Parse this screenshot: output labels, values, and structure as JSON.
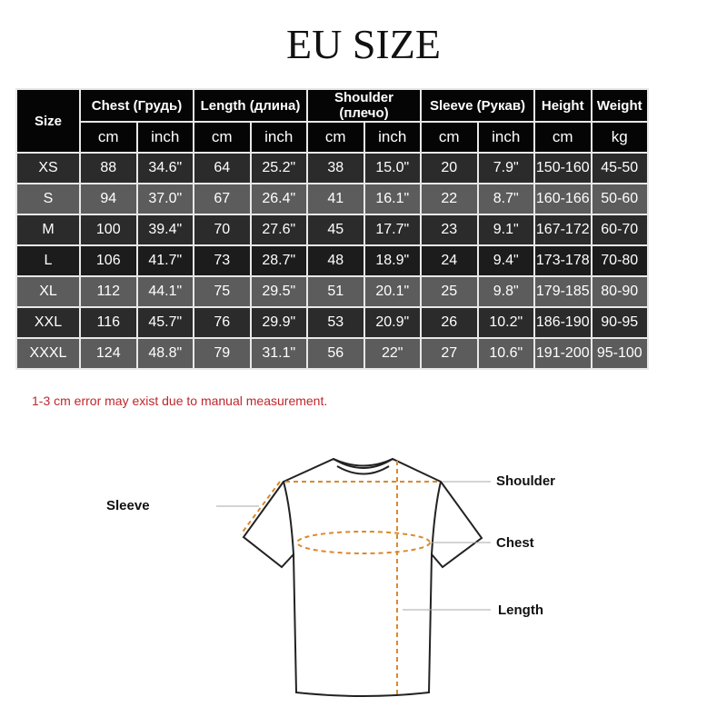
{
  "title": "EU SIZE",
  "table": {
    "size_header": "Size",
    "groups": [
      "Chest  (Грудь)",
      "Length (длина)",
      "Shoulder (плечо)",
      "Sleeve (Рукав)",
      "Height",
      "Weight"
    ],
    "units": [
      "cm",
      "inch",
      "cm",
      "inch",
      "cm",
      "inch",
      "cm",
      "inch",
      "cm",
      "kg"
    ],
    "rows": [
      [
        "XS",
        "88",
        "34.6\"",
        "64",
        "25.2\"",
        "38",
        "15.0\"",
        "20",
        "7.9\"",
        "150-160",
        "45-50"
      ],
      [
        "S",
        "94",
        "37.0\"",
        "67",
        "26.4\"",
        "41",
        "16.1\"",
        "22",
        "8.7\"",
        "160-166",
        "50-60"
      ],
      [
        "M",
        "100",
        "39.4\"",
        "70",
        "27.6\"",
        "45",
        "17.7\"",
        "23",
        "9.1\"",
        "167-172",
        "60-70"
      ],
      [
        "L",
        "106",
        "41.7\"",
        "73",
        "28.7\"",
        "48",
        "18.9\"",
        "24",
        "9.4\"",
        "173-178",
        "70-80"
      ],
      [
        "XL",
        "112",
        "44.1\"",
        "75",
        "29.5\"",
        "51",
        "20.1\"",
        "25",
        "9.8\"",
        "179-185",
        "80-90"
      ],
      [
        "XXL",
        "116",
        "45.7\"",
        "76",
        "29.9\"",
        "53",
        "20.9\"",
        "26",
        "10.2\"",
        "186-190",
        "90-95"
      ],
      [
        "XXXL",
        "124",
        "48.8\"",
        "79",
        "31.1\"",
        "56",
        "22\"",
        "27",
        "10.6\"",
        "191-200",
        "95-100"
      ]
    ]
  },
  "note": "1-3 cm error may exist due to manual measurement.",
  "diagram": {
    "sleeve": "Sleeve",
    "shoulder": "Shoulder",
    "chest": "Chest",
    "length": "Length",
    "measure_color": "#d98a2b"
  }
}
